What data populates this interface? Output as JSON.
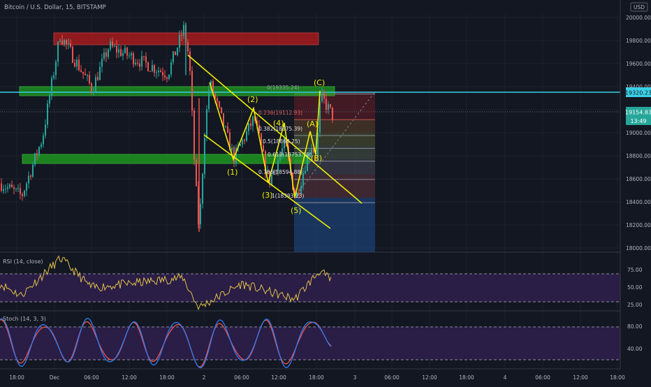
{
  "header": {
    "symbol": "Bitcoin / U.S. Dollar, 15, BITSTAMP",
    "currency": "USD"
  },
  "colors": {
    "background": "#131722",
    "grid": "#1e222d",
    "axis_text": "#b2b5be",
    "up": "#26a69a",
    "down": "#ef5350",
    "pattern": "#f0f000",
    "cyan": "#39d0e6",
    "red_zone": "#b71c1c",
    "green_zone": "#1fa51f",
    "rsi_band": "#2a1d46",
    "rsi_line": "#e0c04a",
    "stoch_k": "#2f7cf0",
    "stoch_d": "#ef5350"
  },
  "price_axis": {
    "ticks": [
      "20000.00",
      "19800.00",
      "19600.00",
      "19400.00",
      "19200.00",
      "19000.00",
      "18800.00",
      "18600.00",
      "18400.00",
      "18200.00",
      "18000.00"
    ],
    "badges": {
      "level": "19320.23",
      "last": "19154.83",
      "countdown": "13:49"
    }
  },
  "time_axis": {
    "ticks": [
      "18:00",
      "Dec",
      "06:00",
      "12:00",
      "18:00",
      "2",
      "06:00",
      "12:00",
      "18:00",
      "3",
      "06:00",
      "12:00",
      "18:00",
      "4",
      "06:00",
      "12:00",
      "18:00"
    ]
  },
  "wave_labels": {
    "w1": "(1)",
    "w2": "(2)",
    "w3": "(3)",
    "w4": "(4)",
    "w5": "(5)",
    "wA": "(A)",
    "wB": "(B)",
    "wC": "(C)"
  },
  "fib_labels": {
    "f0": "0(19335.24)",
    "f236": "0.236(19112.93)",
    "f382": "0.382(18975.39)",
    "f5": "0.5(18864.25)",
    "f618": "0.618(18753.10)",
    "f786": "0.786(18594.88)",
    "f1": "1(18393.23)"
  },
  "rsi": {
    "title": "RSI (14, close)",
    "ticks": [
      "75.00",
      "50.00",
      "25.00"
    ]
  },
  "stoch": {
    "title": "Stoch (14, 3, 3)",
    "ticks": [
      "80.00",
      "40.00"
    ]
  },
  "chart_data": [
    {
      "type": "candlestick",
      "title": "Bitcoin / U.S. Dollar, 15, BITSTAMP",
      "ylim": [
        17930,
        20140
      ],
      "x_ticks": [
        "18:00",
        "Dec",
        "06:00",
        "12:00",
        "18:00",
        "2",
        "06:00",
        "12:00",
        "18:00",
        "3",
        "06:00",
        "12:00",
        "18:00",
        "4",
        "06:00",
        "12:00",
        "18:00"
      ],
      "key_points": [
        {
          "x": "Nov 30 17:00",
          "y": 18560
        },
        {
          "x": "Nov 30 20:00",
          "y": 18450
        },
        {
          "x": "Nov 30 23:00",
          "y": 18960
        },
        {
          "x": "Dec 1 00:45",
          "y": 19850
        },
        {
          "x": "Dec 1 06:00",
          "y": 19380
        },
        {
          "x": "Dec 1 11:00",
          "y": 19750
        },
        {
          "x": "Dec 1 18:00",
          "y": 19510
        },
        {
          "x": "Dec 1 20:45",
          "y": 19900
        },
        {
          "x": "Dec 1 22:00",
          "y": 19640
        },
        {
          "x": "Dec 1 23:30",
          "y": 18650
        },
        {
          "x": "Dec 2 00:00",
          "y": 18140
        },
        {
          "x": "Dec 2 00:30",
          "y": 19000
        },
        {
          "x": "Dec 2 01:30",
          "y": 19440
        },
        {
          "x": "Dec 2 04:30",
          "y": 18780
        },
        {
          "x": "Dec 2 08:00",
          "y": 19130
        },
        {
          "x": "Dec 2 10:00",
          "y": 18570
        },
        {
          "x": "Dec 2 12:00",
          "y": 18910
        },
        {
          "x": "Dec 2 14:00",
          "y": 18420
        },
        {
          "x": "Dec 2 16:30",
          "y": 18900
        },
        {
          "x": "Dec 2 17:30",
          "y": 18810
        },
        {
          "x": "Dec 2 18:15",
          "y": 19320
        },
        {
          "x": "Dec 2 19:45",
          "y": 19150
        }
      ],
      "levels": [
        {
          "name": "horizontal-level",
          "value": 19320.23
        },
        {
          "name": "last-price",
          "value": 19154.83
        }
      ],
      "zones": [
        {
          "name": "resistance-zone",
          "from": 19790,
          "to": 19845
        },
        {
          "name": "upper-support-zone",
          "from": 19310,
          "to": 19350
        },
        {
          "name": "lower-support-zone",
          "from": 18740,
          "to": 18780
        }
      ],
      "fibonacci": [
        {
          "ratio": 0,
          "value": 19335.24
        },
        {
          "ratio": 0.236,
          "value": 19112.93
        },
        {
          "ratio": 0.382,
          "value": 18975.39
        },
        {
          "ratio": 0.5,
          "value": 18864.25
        },
        {
          "ratio": 0.618,
          "value": 18753.1
        },
        {
          "ratio": 0.786,
          "value": 18594.88
        },
        {
          "ratio": 1,
          "value": 18393.23
        }
      ],
      "waves": [
        {
          "label": "(1)",
          "x": "Dec 2 04:30",
          "y": 18780
        },
        {
          "label": "(2)",
          "x": "Dec 2 08:00",
          "y": 19130
        },
        {
          "label": "(3)",
          "x": "Dec 2 10:00",
          "y": 18570
        },
        {
          "label": "(4)",
          "x": "Dec 2 12:00",
          "y": 18910
        },
        {
          "label": "(5)",
          "x": "Dec 2 14:00",
          "y": 18420
        },
        {
          "label": "(A)",
          "x": "Dec 2 16:30",
          "y": 18900
        },
        {
          "label": "(B)",
          "x": "Dec 2 17:30",
          "y": 18810
        },
        {
          "label": "(C)",
          "x": "Dec 2 18:15",
          "y": 19320
        }
      ]
    },
    {
      "type": "line",
      "title": "RSI (14, close)",
      "ylim": [
        20,
        95
      ],
      "levels": [
        70,
        30
      ],
      "key_points": [
        {
          "x": "Nov 30 17:00",
          "y": 55
        },
        {
          "x": "Nov 30 20:00",
          "y": 40
        },
        {
          "x": "Dec 1 00:45",
          "y": 88
        },
        {
          "x": "Dec 1 06:00",
          "y": 50
        },
        {
          "x": "Dec 1 12:00",
          "y": 55
        },
        {
          "x": "Dec 1 20:45",
          "y": 63
        },
        {
          "x": "Dec 2 00:00",
          "y": 24
        },
        {
          "x": "Dec 2 08:00",
          "y": 55
        },
        {
          "x": "Dec 2 14:00",
          "y": 35
        },
        {
          "x": "Dec 2 18:15",
          "y": 72
        },
        {
          "x": "Dec 2 19:45",
          "y": 58
        }
      ]
    },
    {
      "type": "line",
      "title": "Stoch (14, 3, 3)",
      "ylim": [
        0,
        110
      ],
      "levels": [
        80,
        20
      ],
      "series": [
        {
          "name": "%K",
          "values": [
            95,
            10,
            90,
            15,
            92,
            8,
            88,
            12,
            95,
            5,
            90,
            10,
            92,
            6,
            96,
            45
          ]
        },
        {
          "name": "%D",
          "values": [
            90,
            14,
            86,
            18,
            88,
            12,
            84,
            16,
            90,
            9,
            86,
            13,
            88,
            10,
            92,
            50
          ]
        }
      ]
    }
  ]
}
